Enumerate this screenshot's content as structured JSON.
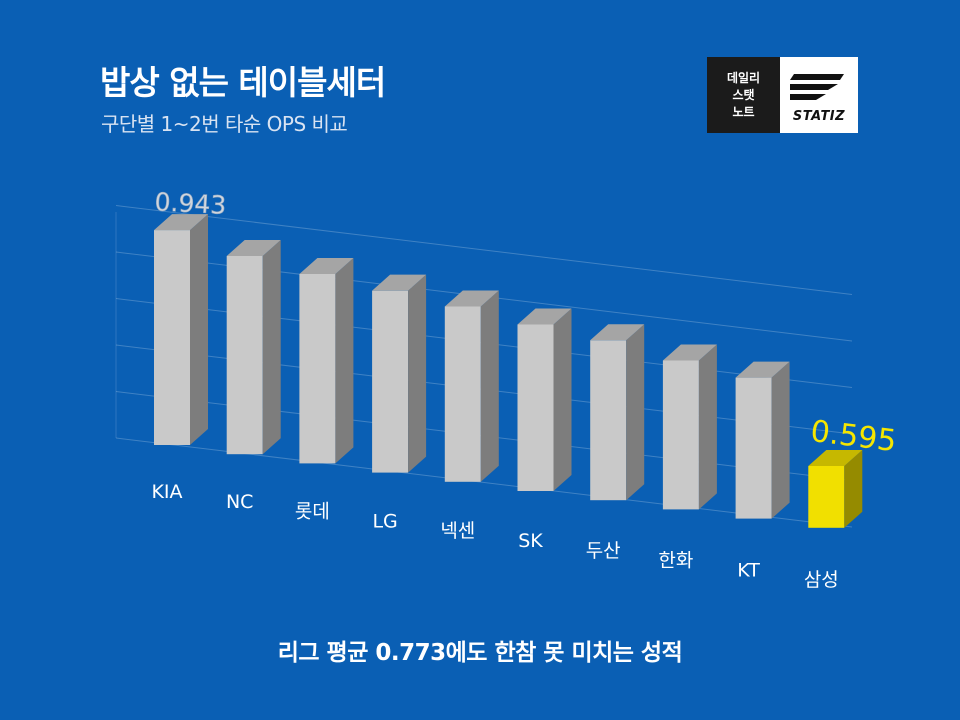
{
  "header": {
    "title": "밥상 없는 테이블세터",
    "subtitle": "구단별 1~2번 타순 OPS 비교"
  },
  "logo": {
    "lines": [
      "데일리",
      "스탯",
      "노트"
    ],
    "wordmark": "STATIZ"
  },
  "caption": "리그 평균 0.773에도 한참 못 미치는 성적",
  "colors": {
    "background": "#0a5fb4",
    "bar": "#c9c9c9",
    "highlight": "#f1e000",
    "highlight_label": "#f5e600"
  },
  "chart_data": {
    "type": "bar",
    "categories": [
      "KIA",
      "NC",
      "롯데",
      "LG",
      "넥센",
      "SK",
      "두산",
      "한화",
      "KT",
      "삼성"
    ],
    "values": [
      0.943,
      0.905,
      0.885,
      0.868,
      0.853,
      0.833,
      0.818,
      0.793,
      0.775,
      0.595
    ],
    "data_labels": [
      {
        "category": "KIA",
        "text": "0.943"
      },
      {
        "category": "삼성",
        "text": "0.595"
      }
    ],
    "highlight": "삼성",
    "grid": true,
    "ylim": [
      0.5,
      1.0
    ]
  }
}
